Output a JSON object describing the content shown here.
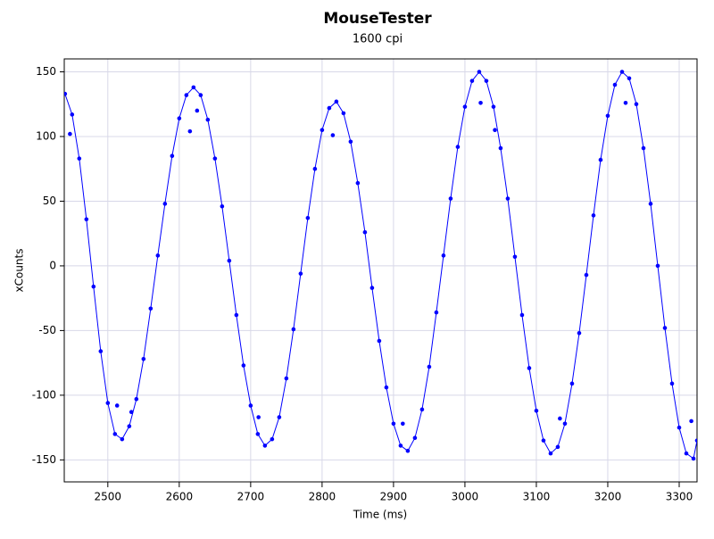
{
  "chart_data": {
    "type": "scatter-line",
    "title": "MouseTester",
    "subtitle": "1600 cpi",
    "xlabel": "Time (ms)",
    "ylabel": "xCounts",
    "xlim": [
      2439,
      3325
    ],
    "ylim": [
      -167,
      160
    ],
    "xticks": [
      2500,
      2600,
      2700,
      2800,
      2900,
      3000,
      3100,
      3200,
      3300
    ],
    "yticks": [
      -150,
      -100,
      -50,
      0,
      50,
      100,
      150
    ],
    "grid": true,
    "series": [
      {
        "color": "#0000ff",
        "line": true,
        "x": [
          2440,
          2450,
          2460,
          2470,
          2480,
          2490,
          2500,
          2510,
          2520,
          2530,
          2540,
          2550,
          2560,
          2570,
          2580,
          2590,
          2600,
          2610,
          2620,
          2630,
          2640,
          2650,
          2660,
          2670,
          2680,
          2690,
          2700,
          2710,
          2720,
          2730,
          2740,
          2750,
          2760,
          2770,
          2780,
          2790,
          2800,
          2810,
          2820,
          2830,
          2840,
          2850,
          2860,
          2870,
          2880,
          2890,
          2900,
          2910,
          2920,
          2930,
          2940,
          2950,
          2960,
          2970,
          2980,
          2990,
          3000,
          3010,
          3020,
          3030,
          3040,
          3050,
          3060,
          3070,
          3080,
          3090,
          3100,
          3110,
          3120,
          3130,
          3140,
          3150,
          3160,
          3170,
          3180,
          3190,
          3200,
          3210,
          3220,
          3230,
          3240,
          3250,
          3260,
          3270,
          3280,
          3290,
          3300,
          3310,
          3320,
          3325
        ],
        "values": [
          133,
          117,
          83,
          36,
          -16,
          -66,
          -106,
          -130,
          -134,
          -124,
          -103,
          -72,
          -33,
          8,
          48,
          85,
          114,
          132,
          138,
          132,
          113,
          83,
          46,
          4,
          -38,
          -77,
          -108,
          -130,
          -139,
          -134,
          -117,
          -87,
          -49,
          -6,
          37,
          75,
          105,
          122,
          127,
          118,
          96,
          64,
          26,
          -17,
          -58,
          -94,
          -122,
          -139,
          -143,
          -133,
          -111,
          -78,
          -36,
          8,
          52,
          92,
          123,
          143,
          150,
          143,
          123,
          91,
          52,
          7,
          -38,
          -79,
          -112,
          -135,
          -145,
          -140,
          -122,
          -91,
          -52,
          -7,
          39,
          82,
          116,
          140,
          150,
          145,
          125,
          91,
          48,
          0,
          -48,
          -91,
          -125,
          -145,
          -149,
          -135
        ]
      },
      {
        "color": "#0000ff",
        "line": false,
        "x": [
          2447,
          2513,
          2533,
          2615,
          2625,
          2711,
          2815,
          2913,
          3022,
          3042,
          3133,
          3225,
          3317
        ],
        "values": [
          102,
          -108,
          -113,
          104,
          120,
          -117,
          101,
          -122,
          126,
          105,
          -118,
          126,
          -120
        ]
      }
    ]
  }
}
